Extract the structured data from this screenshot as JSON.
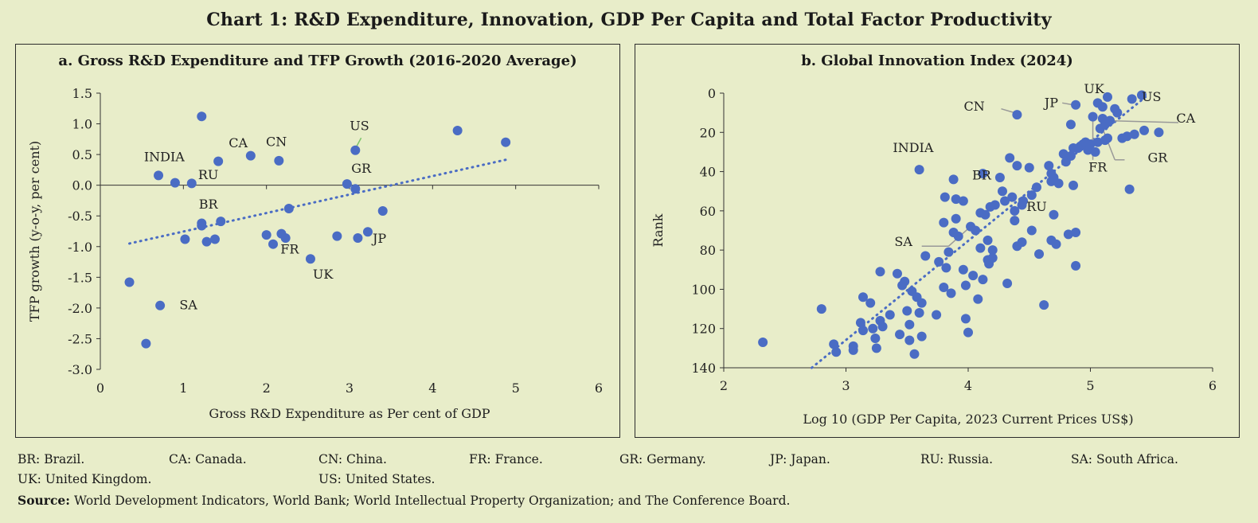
{
  "title": "Chart 1: R&D Expenditure, Innovation, GDP Per Capita and Total Factor Productivity",
  "chart_data": [
    {
      "type": "scatter",
      "title": "a. Gross R&D Expenditure and TFP Growth (2016-2020 Average)",
      "xlabel": "Gross R&D Expenditure as Per cent of GDP",
      "ylabel": "TFP growth (y-o-y, per cent)",
      "xlim": [
        0,
        6
      ],
      "ylim": [
        -3.0,
        1.5
      ],
      "xticks": [
        "0",
        "1",
        "2",
        "3",
        "4",
        "5",
        "6"
      ],
      "yticks": [
        "1.5",
        "1.0",
        "0.5",
        "0.0",
        "-0.5",
        "-1.0",
        "-1.5",
        "-2.0",
        "-2.5",
        "-3.0"
      ],
      "trendline": {
        "style": "dotted",
        "from": [
          0.35,
          -0.95
        ],
        "to": [
          4.9,
          0.42
        ]
      },
      "color": "#4a6cc4",
      "points": [
        {
          "x": 0.35,
          "y": -1.58
        },
        {
          "x": 0.55,
          "y": -2.58
        },
        {
          "x": 0.72,
          "y": -1.96
        },
        {
          "x": 0.7,
          "y": 0.16
        },
        {
          "x": 0.9,
          "y": 0.04
        },
        {
          "x": 1.1,
          "y": 0.03
        },
        {
          "x": 1.22,
          "y": 1.12
        },
        {
          "x": 1.42,
          "y": 0.39
        },
        {
          "x": 1.81,
          "y": 0.48
        },
        {
          "x": 2.15,
          "y": 0.4
        },
        {
          "x": 3.07,
          "y": 0.57
        },
        {
          "x": 4.3,
          "y": 0.89
        },
        {
          "x": 4.88,
          "y": 0.7
        },
        {
          "x": 2.97,
          "y": 0.02
        },
        {
          "x": 3.07,
          "y": -0.06
        },
        {
          "x": 1.22,
          "y": -0.62
        },
        {
          "x": 1.22,
          "y": -0.66
        },
        {
          "x": 1.45,
          "y": -0.59
        },
        {
          "x": 1.02,
          "y": -0.88
        },
        {
          "x": 1.28,
          "y": -0.92
        },
        {
          "x": 1.38,
          "y": -0.88
        },
        {
          "x": 2.27,
          "y": -0.38
        },
        {
          "x": 3.4,
          "y": -0.42
        },
        {
          "x": 2.0,
          "y": -0.81
        },
        {
          "x": 2.08,
          "y": -0.96
        },
        {
          "x": 2.18,
          "y": -0.79
        },
        {
          "x": 2.23,
          "y": -0.86
        },
        {
          "x": 2.53,
          "y": -1.2
        },
        {
          "x": 2.85,
          "y": -0.83
        },
        {
          "x": 3.1,
          "y": -0.86
        },
        {
          "x": 3.22,
          "y": -0.76
        }
      ],
      "labels": [
        {
          "text": "INDIA",
          "x": 0.77,
          "y": 0.39
        },
        {
          "text": "RU",
          "x": 1.3,
          "y": 0.1
        },
        {
          "text": "CA",
          "x": 1.66,
          "y": 0.62
        },
        {
          "text": "CN",
          "x": 2.12,
          "y": 0.64
        },
        {
          "text": "US",
          "x": 3.12,
          "y": 0.9
        },
        {
          "text": "GR",
          "x": 3.14,
          "y": 0.2
        },
        {
          "text": "BR",
          "x": 1.3,
          "y": -0.38
        },
        {
          "text": "FR",
          "x": 2.28,
          "y": -1.11
        },
        {
          "text": "UK",
          "x": 2.68,
          "y": -1.52
        },
        {
          "text": "JP",
          "x": 3.36,
          "y": -0.94
        },
        {
          "text": "SA",
          "x": 1.06,
          "y": -2.02
        }
      ]
    },
    {
      "type": "scatter",
      "title": "b. Global Innovation Index (2024)",
      "xlabel": "Log 10 (GDP Per Capita, 2023 Current Prices US$)",
      "ylabel": "Rank",
      "xlim": [
        2,
        6
      ],
      "ylim": [
        140,
        0
      ],
      "xticks": [
        "2",
        "3",
        "4",
        "5",
        "6"
      ],
      "yticks": [
        "0",
        "20",
        "40",
        "60",
        "80",
        "100",
        "120",
        "140"
      ],
      "trendline": {
        "style": "dotted",
        "from": [
          2.72,
          140
        ],
        "to": [
          5.45,
          2
        ]
      },
      "color": "#4a6cc4",
      "points": [
        {
          "x": 2.32,
          "y": 127
        },
        {
          "x": 2.8,
          "y": 110
        },
        {
          "x": 2.9,
          "y": 128
        },
        {
          "x": 2.92,
          "y": 132
        },
        {
          "x": 3.06,
          "y": 129
        },
        {
          "x": 3.06,
          "y": 131
        },
        {
          "x": 3.12,
          "y": 117
        },
        {
          "x": 3.14,
          "y": 121
        },
        {
          "x": 3.14,
          "y": 104
        },
        {
          "x": 3.2,
          "y": 107
        },
        {
          "x": 3.22,
          "y": 120
        },
        {
          "x": 3.24,
          "y": 125
        },
        {
          "x": 3.25,
          "y": 130
        },
        {
          "x": 3.28,
          "y": 116
        },
        {
          "x": 3.3,
          "y": 119
        },
        {
          "x": 3.28,
          "y": 91
        },
        {
          "x": 3.36,
          "y": 113
        },
        {
          "x": 3.42,
          "y": 92
        },
        {
          "x": 3.44,
          "y": 123
        },
        {
          "x": 3.46,
          "y": 98
        },
        {
          "x": 3.48,
          "y": 96
        },
        {
          "x": 3.5,
          "y": 111
        },
        {
          "x": 3.52,
          "y": 118
        },
        {
          "x": 3.52,
          "y": 126
        },
        {
          "x": 3.54,
          "y": 101
        },
        {
          "x": 3.56,
          "y": 133
        },
        {
          "x": 3.58,
          "y": 104
        },
        {
          "x": 3.6,
          "y": 112
        },
        {
          "x": 3.6,
          "y": 39
        },
        {
          "x": 3.62,
          "y": 124
        },
        {
          "x": 3.62,
          "y": 107
        },
        {
          "x": 3.65,
          "y": 83
        },
        {
          "x": 3.74,
          "y": 113
        },
        {
          "x": 3.76,
          "y": 86
        },
        {
          "x": 3.8,
          "y": 99
        },
        {
          "x": 3.8,
          "y": 66
        },
        {
          "x": 3.82,
          "y": 89
        },
        {
          "x": 3.81,
          "y": 53
        },
        {
          "x": 3.84,
          "y": 81
        },
        {
          "x": 3.86,
          "y": 102
        },
        {
          "x": 3.88,
          "y": 71
        },
        {
          "x": 3.88,
          "y": 44
        },
        {
          "x": 3.9,
          "y": 64
        },
        {
          "x": 3.9,
          "y": 54
        },
        {
          "x": 3.92,
          "y": 73
        },
        {
          "x": 3.96,
          "y": 90
        },
        {
          "x": 3.96,
          "y": 55
        },
        {
          "x": 3.98,
          "y": 98
        },
        {
          "x": 3.98,
          "y": 115
        },
        {
          "x": 4.0,
          "y": 122
        },
        {
          "x": 4.02,
          "y": 68
        },
        {
          "x": 4.04,
          "y": 93
        },
        {
          "x": 4.06,
          "y": 70
        },
        {
          "x": 4.08,
          "y": 105
        },
        {
          "x": 4.1,
          "y": 61
        },
        {
          "x": 4.1,
          "y": 79
        },
        {
          "x": 4.12,
          "y": 95
        },
        {
          "x": 4.12,
          "y": 41
        },
        {
          "x": 4.14,
          "y": 62
        },
        {
          "x": 4.16,
          "y": 75
        },
        {
          "x": 4.16,
          "y": 85
        },
        {
          "x": 4.17,
          "y": 87
        },
        {
          "x": 4.18,
          "y": 58
        },
        {
          "x": 4.2,
          "y": 80
        },
        {
          "x": 4.2,
          "y": 84
        },
        {
          "x": 4.22,
          "y": 57
        },
        {
          "x": 4.26,
          "y": 43
        },
        {
          "x": 4.28,
          "y": 50
        },
        {
          "x": 4.3,
          "y": 55
        },
        {
          "x": 4.32,
          "y": 97
        },
        {
          "x": 4.34,
          "y": 33
        },
        {
          "x": 4.36,
          "y": 53
        },
        {
          "x": 4.38,
          "y": 65
        },
        {
          "x": 4.38,
          "y": 60
        },
        {
          "x": 4.4,
          "y": 37
        },
        {
          "x": 4.4,
          "y": 78
        },
        {
          "x": 4.4,
          "y": 11
        },
        {
          "x": 4.44,
          "y": 76
        },
        {
          "x": 4.44,
          "y": 57
        },
        {
          "x": 4.45,
          "y": 55
        },
        {
          "x": 4.5,
          "y": 38
        },
        {
          "x": 4.52,
          "y": 52
        },
        {
          "x": 4.52,
          "y": 70
        },
        {
          "x": 4.56,
          "y": 48
        },
        {
          "x": 4.58,
          "y": 82
        },
        {
          "x": 4.62,
          "y": 108
        },
        {
          "x": 4.66,
          "y": 37
        },
        {
          "x": 4.68,
          "y": 45
        },
        {
          "x": 4.68,
          "y": 41
        },
        {
          "x": 4.68,
          "y": 75
        },
        {
          "x": 4.7,
          "y": 43
        },
        {
          "x": 4.7,
          "y": 62
        },
        {
          "x": 4.72,
          "y": 77
        },
        {
          "x": 4.74,
          "y": 46
        },
        {
          "x": 4.78,
          "y": 31
        },
        {
          "x": 4.8,
          "y": 35
        },
        {
          "x": 4.82,
          "y": 72
        },
        {
          "x": 4.84,
          "y": 16
        },
        {
          "x": 4.84,
          "y": 32
        },
        {
          "x": 4.86,
          "y": 28
        },
        {
          "x": 4.86,
          "y": 47
        },
        {
          "x": 4.88,
          "y": 71
        },
        {
          "x": 4.88,
          "y": 88
        },
        {
          "x": 4.88,
          "y": 6
        },
        {
          "x": 4.9,
          "y": 28
        },
        {
          "x": 4.92,
          "y": 27
        },
        {
          "x": 4.94,
          "y": 26
        },
        {
          "x": 4.96,
          "y": 25
        },
        {
          "x": 4.98,
          "y": 29
        },
        {
          "x": 5.0,
          "y": 26
        },
        {
          "x": 5.02,
          "y": 12
        },
        {
          "x": 5.04,
          "y": 30
        },
        {
          "x": 5.06,
          "y": 25
        },
        {
          "x": 5.06,
          "y": 5
        },
        {
          "x": 5.08,
          "y": 18
        },
        {
          "x": 5.1,
          "y": 7
        },
        {
          "x": 5.1,
          "y": 13
        },
        {
          "x": 5.12,
          "y": 16
        },
        {
          "x": 5.12,
          "y": 24
        },
        {
          "x": 5.14,
          "y": 2
        },
        {
          "x": 5.14,
          "y": 23
        },
        {
          "x": 5.16,
          "y": 14
        },
        {
          "x": 5.2,
          "y": 8
        },
        {
          "x": 5.22,
          "y": 10
        },
        {
          "x": 5.26,
          "y": 23
        },
        {
          "x": 5.3,
          "y": 22
        },
        {
          "x": 5.32,
          "y": 49
        },
        {
          "x": 5.34,
          "y": 3
        },
        {
          "x": 5.36,
          "y": 21
        },
        {
          "x": 5.42,
          "y": 1
        },
        {
          "x": 5.44,
          "y": 19
        },
        {
          "x": 5.56,
          "y": 20
        }
      ],
      "labels": [
        {
          "text": "CN",
          "x": 4.05,
          "y": 9
        },
        {
          "text": "JP",
          "x": 4.68,
          "y": 7
        },
        {
          "text": "UK",
          "x": 5.03,
          "y": 0
        },
        {
          "text": "US",
          "x": 5.5,
          "y": 4
        },
        {
          "text": "CA",
          "x": 5.78,
          "y": 15
        },
        {
          "text": "GR",
          "x": 5.55,
          "y": 35
        },
        {
          "text": "FR",
          "x": 5.06,
          "y": 40
        },
        {
          "text": "INDIA",
          "x": 3.55,
          "y": 30
        },
        {
          "text": "BR",
          "x": 4.11,
          "y": 44
        },
        {
          "text": "RU",
          "x": 4.56,
          "y": 60
        },
        {
          "text": "SA",
          "x": 3.47,
          "y": 78
        }
      ],
      "leaders": [
        {
          "from": [
            4.27,
            8
          ],
          "to": [
            4.38,
            10
          ]
        },
        {
          "from": [
            4.77,
            5
          ],
          "to": [
            4.86,
            6
          ]
        },
        {
          "from": [
            5.12,
            14
          ],
          "to": [
            5.72,
            15
          ]
        },
        {
          "from": [
            5.1,
            18
          ],
          "to": [
            5.2,
            34
          ]
        },
        {
          "from": [
            5.2,
            34
          ],
          "to": [
            5.28,
            34
          ]
        },
        {
          "from": [
            5.02,
            12
          ],
          "to": [
            5.02,
            34
          ]
        },
        {
          "from": [
            3.62,
            78
          ],
          "to": [
            3.84,
            78
          ]
        },
        {
          "from": [
            3.84,
            78
          ],
          "to": [
            4.02,
            68
          ]
        }
      ]
    }
  ],
  "footer": {
    "abbreviations": [
      "BR: Brazil.",
      "CA: Canada.",
      "CN: China.",
      "FR: France.",
      "GR: Germany.",
      "JP: Japan.",
      "RU: Russia.",
      "SA: South Africa.",
      "UK: United Kingdom.",
      "US: United States."
    ],
    "source_label": "Source:",
    "source_text": "World Development Indicators, World Bank; World Intellectual Property Organization; and The Conference Board."
  }
}
